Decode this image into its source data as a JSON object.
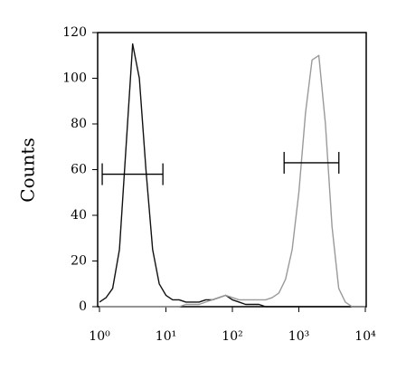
{
  "chart_data": {
    "type": "histogram-line",
    "y_label": "Counts",
    "xscale": "log",
    "xlim": [
      1,
      10000
    ],
    "ylim": [
      0,
      120
    ],
    "xticks": [
      {
        "value": 1,
        "label": "10⁰"
      },
      {
        "value": 10,
        "label": "10¹"
      },
      {
        "value": 100,
        "label": "10²"
      },
      {
        "value": 1000,
        "label": "10³"
      },
      {
        "value": 10000,
        "label": "10⁴"
      }
    ],
    "yticks": [
      0,
      20,
      40,
      60,
      80,
      100,
      120
    ],
    "x": [
      1,
      1.26,
      1.58,
      2,
      2.51,
      3.16,
      3.98,
      5.01,
      6.31,
      7.94,
      10,
      12.6,
      15.8,
      20,
      25.1,
      31.6,
      39.8,
      50.1,
      63.1,
      79.4,
      100,
      126,
      158,
      200,
      251,
      316,
      398,
      501,
      631,
      794,
      1000,
      1260,
      1580,
      2000,
      2510,
      3160,
      3980,
      5010,
      6310,
      7940,
      10000
    ],
    "series": [
      {
        "color": "#111111",
        "values": [
          2,
          4,
          8,
          25,
          70,
          115,
          100,
          60,
          25,
          10,
          5,
          3,
          3,
          2,
          2,
          2,
          3,
          3,
          4,
          5,
          3,
          2,
          1,
          1,
          1,
          0,
          0,
          0,
          0,
          0,
          0,
          0,
          0,
          0,
          0,
          0,
          0,
          0,
          0,
          0,
          0
        ]
      },
      {
        "color": "#9a9a9a",
        "values": [
          0,
          0,
          0,
          0,
          0,
          0,
          0,
          0,
          0,
          0,
          0,
          0,
          0,
          1,
          1,
          1,
          2,
          3,
          4,
          5,
          4,
          3,
          3,
          3,
          3,
          3,
          4,
          6,
          12,
          25,
          50,
          85,
          108,
          110,
          80,
          35,
          8,
          2,
          0,
          0,
          0
        ]
      }
    ],
    "gates": [
      {
        "x": [
          1.1,
          9
        ],
        "y": 58
      },
      {
        "x": [
          600,
          4000
        ],
        "y": 63
      }
    ]
  }
}
